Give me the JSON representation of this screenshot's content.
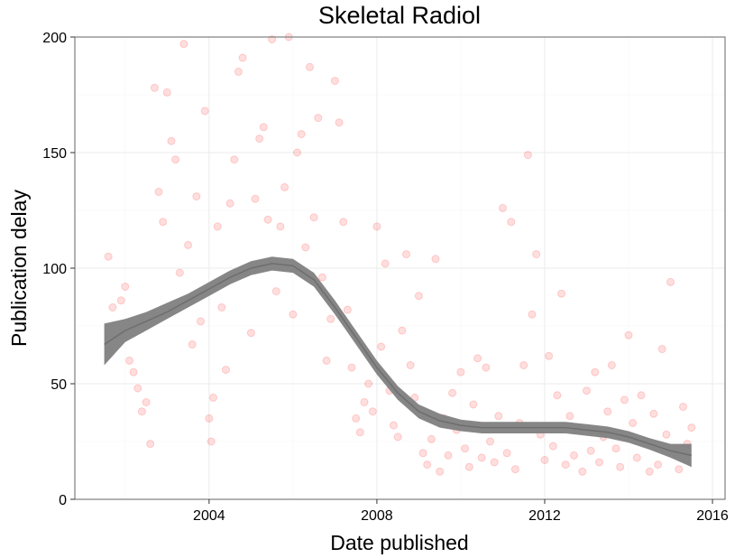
{
  "chart_data": {
    "type": "scatter",
    "title": "Skeletal Radiol",
    "xlabel": "Date published",
    "ylabel": "Publication delay",
    "x_range": [
      2000.8,
      2016.3
    ],
    "ylim": [
      0,
      200
    ],
    "x_ticks": [
      2004,
      2008,
      2012,
      2016
    ],
    "y_ticks": [
      0,
      50,
      100,
      150,
      200
    ],
    "x_tick_labels": [
      "2004",
      "2008",
      "2012",
      "2016"
    ],
    "y_tick_labels": [
      "0",
      "50",
      "100",
      "150",
      "200"
    ],
    "grid": true,
    "point_color": "#ff0000",
    "point_opacity": 0.13,
    "smooth_color": "#7f7f7f",
    "smooth": [
      {
        "x": 2001.5,
        "y": 67,
        "lo": 58,
        "hi": 76
      },
      {
        "x": 2002.0,
        "y": 73,
        "lo": 68,
        "hi": 78
      },
      {
        "x": 2002.5,
        "y": 77,
        "lo": 73,
        "hi": 81
      },
      {
        "x": 2003.0,
        "y": 81,
        "lo": 78,
        "hi": 85
      },
      {
        "x": 2003.5,
        "y": 86,
        "lo": 83,
        "hi": 89
      },
      {
        "x": 2004.0,
        "y": 91,
        "lo": 88,
        "hi": 94
      },
      {
        "x": 2004.5,
        "y": 96,
        "lo": 93,
        "hi": 99
      },
      {
        "x": 2005.0,
        "y": 100,
        "lo": 97,
        "hi": 103
      },
      {
        "x": 2005.5,
        "y": 102,
        "lo": 99,
        "hi": 105
      },
      {
        "x": 2006.0,
        "y": 101,
        "lo": 98,
        "hi": 104
      },
      {
        "x": 2006.5,
        "y": 95,
        "lo": 92,
        "hi": 98
      },
      {
        "x": 2007.0,
        "y": 83,
        "lo": 80,
        "hi": 86
      },
      {
        "x": 2007.5,
        "y": 70,
        "lo": 67,
        "hi": 73
      },
      {
        "x": 2008.0,
        "y": 57,
        "lo": 54,
        "hi": 60
      },
      {
        "x": 2008.5,
        "y": 46,
        "lo": 43,
        "hi": 49
      },
      {
        "x": 2009.0,
        "y": 38,
        "lo": 35,
        "hi": 41
      },
      {
        "x": 2009.5,
        "y": 34,
        "lo": 31,
        "hi": 37
      },
      {
        "x": 2010.0,
        "y": 32,
        "lo": 29.5,
        "hi": 34.5
      },
      {
        "x": 2010.5,
        "y": 31,
        "lo": 28.5,
        "hi": 33.5
      },
      {
        "x": 2011.0,
        "y": 31,
        "lo": 28.5,
        "hi": 33.5
      },
      {
        "x": 2011.5,
        "y": 31,
        "lo": 28.5,
        "hi": 33.5
      },
      {
        "x": 2012.0,
        "y": 31,
        "lo": 28.5,
        "hi": 33.5
      },
      {
        "x": 2012.5,
        "y": 31,
        "lo": 28.5,
        "hi": 33.5
      },
      {
        "x": 2013.0,
        "y": 30,
        "lo": 27.5,
        "hi": 32.5
      },
      {
        "x": 2013.5,
        "y": 29,
        "lo": 26.5,
        "hi": 31.5
      },
      {
        "x": 2014.0,
        "y": 27,
        "lo": 24.5,
        "hi": 29.5
      },
      {
        "x": 2014.5,
        "y": 24,
        "lo": 21.5,
        "hi": 26.5
      },
      {
        "x": 2015.0,
        "y": 21,
        "lo": 18,
        "hi": 24
      },
      {
        "x": 2015.5,
        "y": 19,
        "lo": 14,
        "hi": 24
      }
    ],
    "points": [
      [
        2001.6,
        105
      ],
      [
        2001.7,
        83
      ],
      [
        2001.9,
        86
      ],
      [
        2002.0,
        92
      ],
      [
        2002.1,
        60
      ],
      [
        2002.2,
        55
      ],
      [
        2002.3,
        48
      ],
      [
        2002.4,
        38
      ],
      [
        2002.5,
        42
      ],
      [
        2002.6,
        24
      ],
      [
        2002.7,
        178
      ],
      [
        2002.8,
        133
      ],
      [
        2002.9,
        120
      ],
      [
        2003.0,
        176
      ],
      [
        2003.1,
        155
      ],
      [
        2003.2,
        147
      ],
      [
        2003.3,
        98
      ],
      [
        2003.4,
        197
      ],
      [
        2003.5,
        110
      ],
      [
        2003.6,
        67
      ],
      [
        2003.7,
        131
      ],
      [
        2003.8,
        77
      ],
      [
        2003.9,
        168
      ],
      [
        2004.0,
        35
      ],
      [
        2004.05,
        25
      ],
      [
        2004.1,
        44
      ],
      [
        2004.2,
        118
      ],
      [
        2004.3,
        83
      ],
      [
        2004.4,
        56
      ],
      [
        2004.5,
        128
      ],
      [
        2004.6,
        147
      ],
      [
        2004.7,
        185
      ],
      [
        2004.8,
        191
      ],
      [
        2004.9,
        98
      ],
      [
        2005.0,
        72
      ],
      [
        2005.1,
        130
      ],
      [
        2005.2,
        156
      ],
      [
        2005.3,
        161
      ],
      [
        2005.4,
        121
      ],
      [
        2005.5,
        199
      ],
      [
        2005.6,
        90
      ],
      [
        2005.7,
        118
      ],
      [
        2005.8,
        135
      ],
      [
        2005.9,
        200
      ],
      [
        2006.0,
        80
      ],
      [
        2006.1,
        150
      ],
      [
        2006.2,
        158
      ],
      [
        2006.3,
        109
      ],
      [
        2006.4,
        187
      ],
      [
        2006.5,
        122
      ],
      [
        2006.6,
        165
      ],
      [
        2006.7,
        96
      ],
      [
        2006.8,
        60
      ],
      [
        2006.9,
        78
      ],
      [
        2007.0,
        181
      ],
      [
        2007.1,
        163
      ],
      [
        2007.2,
        120
      ],
      [
        2007.3,
        82
      ],
      [
        2007.4,
        57
      ],
      [
        2007.5,
        35
      ],
      [
        2007.6,
        29
      ],
      [
        2007.7,
        42
      ],
      [
        2007.8,
        50
      ],
      [
        2007.9,
        38
      ],
      [
        2008.0,
        118
      ],
      [
        2008.1,
        66
      ],
      [
        2008.2,
        102
      ],
      [
        2008.3,
        47
      ],
      [
        2008.4,
        32
      ],
      [
        2008.5,
        27
      ],
      [
        2008.6,
        73
      ],
      [
        2008.7,
        106
      ],
      [
        2008.8,
        58
      ],
      [
        2008.9,
        44
      ],
      [
        2009.0,
        88
      ],
      [
        2009.1,
        20
      ],
      [
        2009.2,
        15
      ],
      [
        2009.3,
        26
      ],
      [
        2009.4,
        104
      ],
      [
        2009.5,
        12
      ],
      [
        2009.6,
        35
      ],
      [
        2009.7,
        19
      ],
      [
        2009.8,
        46
      ],
      [
        2009.9,
        30
      ],
      [
        2010.0,
        55
      ],
      [
        2010.1,
        22
      ],
      [
        2010.2,
        14
      ],
      [
        2010.3,
        41
      ],
      [
        2010.4,
        61
      ],
      [
        2010.5,
        18
      ],
      [
        2010.6,
        57
      ],
      [
        2010.7,
        25
      ],
      [
        2010.8,
        16
      ],
      [
        2010.9,
        36
      ],
      [
        2011.0,
        126
      ],
      [
        2011.1,
        20
      ],
      [
        2011.2,
        120
      ],
      [
        2011.3,
        13
      ],
      [
        2011.4,
        33
      ],
      [
        2011.5,
        58
      ],
      [
        2011.6,
        149
      ],
      [
        2011.7,
        80
      ],
      [
        2011.8,
        106
      ],
      [
        2011.9,
        28
      ],
      [
        2012.0,
        17
      ],
      [
        2012.1,
        62
      ],
      [
        2012.2,
        23
      ],
      [
        2012.3,
        45
      ],
      [
        2012.4,
        89
      ],
      [
        2012.5,
        15
      ],
      [
        2012.6,
        36
      ],
      [
        2012.7,
        19
      ],
      [
        2012.8,
        30
      ],
      [
        2012.9,
        12
      ],
      [
        2013.0,
        47
      ],
      [
        2013.1,
        21
      ],
      [
        2013.2,
        55
      ],
      [
        2013.3,
        16
      ],
      [
        2013.4,
        27
      ],
      [
        2013.5,
        38
      ],
      [
        2013.6,
        58
      ],
      [
        2013.7,
        22
      ],
      [
        2013.8,
        14
      ],
      [
        2013.9,
        43
      ],
      [
        2014.0,
        71
      ],
      [
        2014.1,
        33
      ],
      [
        2014.2,
        18
      ],
      [
        2014.3,
        45
      ],
      [
        2014.4,
        25
      ],
      [
        2014.5,
        12
      ],
      [
        2014.6,
        37
      ],
      [
        2014.7,
        15
      ],
      [
        2014.8,
        65
      ],
      [
        2014.9,
        28
      ],
      [
        2015.0,
        94
      ],
      [
        2015.1,
        20
      ],
      [
        2015.2,
        13
      ],
      [
        2015.3,
        40
      ],
      [
        2015.4,
        24
      ],
      [
        2015.5,
        31
      ]
    ]
  }
}
